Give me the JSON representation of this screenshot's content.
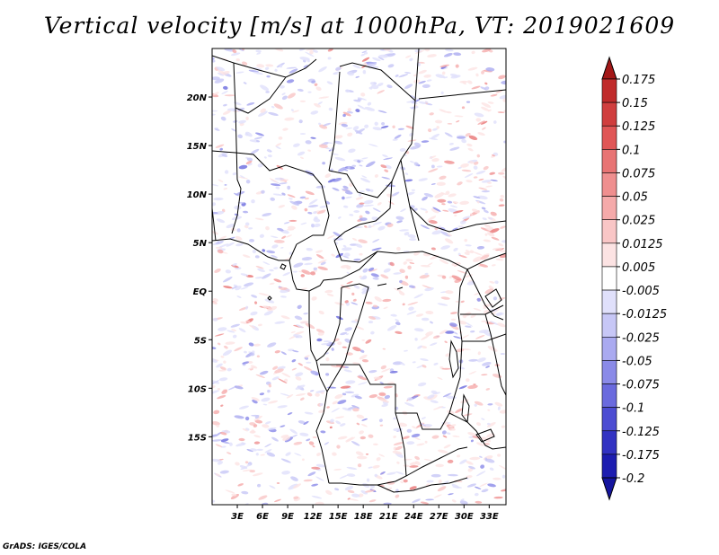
{
  "title": "Vertical velocity [m/s] at 1000hPa, VT: 2019021609",
  "credit": "GrADS: IGES/COLA",
  "map": {
    "lon_range": [
      0,
      35
    ],
    "lat_range": [
      -22,
      25
    ],
    "lat_ticks": [
      {
        "value": 20,
        "label": "20N"
      },
      {
        "value": 15,
        "label": "15N"
      },
      {
        "value": 10,
        "label": "10N"
      },
      {
        "value": 5,
        "label": "5N"
      },
      {
        "value": 0,
        "label": "EQ"
      },
      {
        "value": -5,
        "label": "5S"
      },
      {
        "value": -10,
        "label": "10S"
      },
      {
        "value": -15,
        "label": "15S"
      }
    ],
    "lon_ticks": [
      {
        "value": 3,
        "label": "3E"
      },
      {
        "value": 6,
        "label": "6E"
      },
      {
        "value": 9,
        "label": "9E"
      },
      {
        "value": 12,
        "label": "12E"
      },
      {
        "value": 15,
        "label": "15E"
      },
      {
        "value": 18,
        "label": "18E"
      },
      {
        "value": 21,
        "label": "21E"
      },
      {
        "value": 24,
        "label": "24E"
      },
      {
        "value": 27,
        "label": "27E"
      },
      {
        "value": 30,
        "label": "30E"
      },
      {
        "value": 33,
        "label": "33E"
      }
    ]
  },
  "colorbar": {
    "levels": [
      {
        "label": "0.175",
        "color": "#b21d1d"
      },
      {
        "label": "0.15",
        "color": "#c02b2b"
      },
      {
        "label": "0.125",
        "color": "#d03e3e"
      },
      {
        "label": "0.1",
        "color": "#e05656"
      },
      {
        "label": "0.075",
        "color": "#e87474"
      },
      {
        "label": "0.05",
        "color": "#ef8f8f"
      },
      {
        "label": "0.025",
        "color": "#f5aaaa"
      },
      {
        "label": "0.0125",
        "color": "#f9c6c6"
      },
      {
        "label": "0.005",
        "color": "#fce3e3"
      },
      {
        "label": "-0.005",
        "color": "#ffffff"
      },
      {
        "label": "-0.0125",
        "color": "#e0e0fb"
      },
      {
        "label": "-0.025",
        "color": "#c7c7f6"
      },
      {
        "label": "-0.05",
        "color": "#aaaaf0"
      },
      {
        "label": "-0.075",
        "color": "#8a8ae8"
      },
      {
        "label": "-0.1",
        "color": "#6a6ade"
      },
      {
        "label": "-0.125",
        "color": "#4c4cd2"
      },
      {
        "label": "-0.175",
        "color": "#3232c2"
      },
      {
        "label": "-0.2",
        "color": "#1d1db0"
      }
    ],
    "extreme_high_color": "#a31818",
    "extreme_low_color": "#15159e"
  }
}
